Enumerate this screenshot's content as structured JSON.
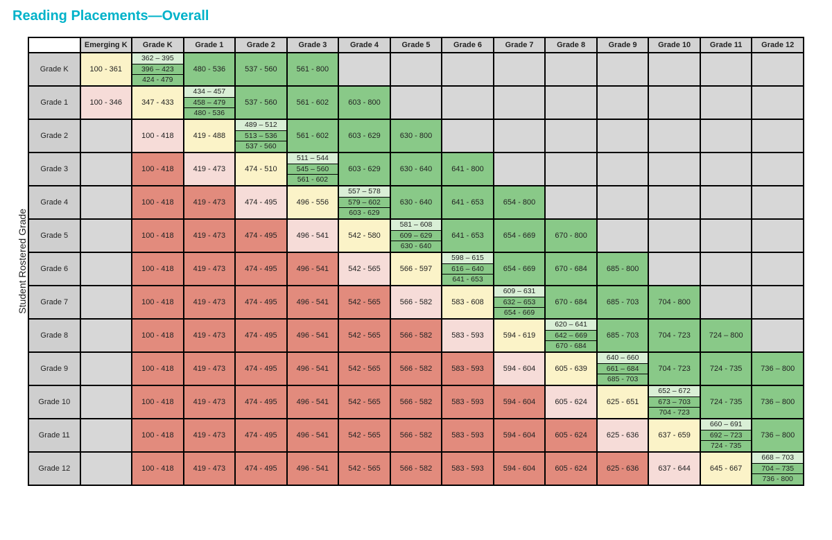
{
  "title": "Reading Placements—Overall",
  "title_color": "#00b2c9",
  "y_axis_label": "Student Rostered Grade",
  "colors": {
    "header_bg": "#d3d3d3",
    "rowhead_bg": "#cfcfcf",
    "empty_bg": "#d7d7d7",
    "red": "#e28b7d",
    "pink": "#f6dcd8",
    "yellow": "#fbf3c8",
    "green_light": "#d9efd6",
    "green": "#89c988",
    "border": "#000000",
    "text": "#222222"
  },
  "columns": [
    "Emerging K",
    "Grade K",
    "Grade 1",
    "Grade 2",
    "Grade 3",
    "Grade 4",
    "Grade 5",
    "Grade 6",
    "Grade 7",
    "Grade 8",
    "Grade 9",
    "Grade 10",
    "Grade 11",
    "Grade 12"
  ],
  "rows": [
    {
      "label": "Grade K",
      "cells": [
        {
          "text": "100 - 361",
          "bg": "yellow"
        },
        {
          "bands": [
            {
              "text": "362 – 395",
              "bg": "green_light"
            },
            {
              "text": "396 – 423",
              "bg": "green"
            },
            {
              "text": "424 - 479",
              "bg": "green"
            }
          ]
        },
        {
          "text": "480 - 536",
          "bg": "green"
        },
        {
          "text": "537 - 560",
          "bg": "green"
        },
        {
          "text": "561 - 800",
          "bg": "green"
        },
        {
          "bg": "empty_bg"
        },
        {
          "bg": "empty_bg"
        },
        {
          "bg": "empty_bg"
        },
        {
          "bg": "empty_bg"
        },
        {
          "bg": "empty_bg"
        },
        {
          "bg": "empty_bg"
        },
        {
          "bg": "empty_bg"
        },
        {
          "bg": "empty_bg"
        },
        {
          "bg": "empty_bg"
        }
      ]
    },
    {
      "label": "Grade 1",
      "cells": [
        {
          "text": "100 - 346",
          "bg": "pink"
        },
        {
          "text": "347 - 433",
          "bg": "yellow"
        },
        {
          "bands": [
            {
              "text": "434 – 457",
              "bg": "green_light"
            },
            {
              "text": "458 – 479",
              "bg": "green"
            },
            {
              "text": "480 - 536",
              "bg": "green"
            }
          ]
        },
        {
          "text": "537 - 560",
          "bg": "green"
        },
        {
          "text": "561 - 602",
          "bg": "green"
        },
        {
          "text": "603 - 800",
          "bg": "green"
        },
        {
          "bg": "empty_bg"
        },
        {
          "bg": "empty_bg"
        },
        {
          "bg": "empty_bg"
        },
        {
          "bg": "empty_bg"
        },
        {
          "bg": "empty_bg"
        },
        {
          "bg": "empty_bg"
        },
        {
          "bg": "empty_bg"
        },
        {
          "bg": "empty_bg"
        }
      ]
    },
    {
      "label": "Grade 2",
      "cells": [
        {
          "bg": "empty_bg"
        },
        {
          "text": "100 - 418",
          "bg": "pink"
        },
        {
          "text": "419 - 488",
          "bg": "yellow"
        },
        {
          "bands": [
            {
              "text": "489 – 512",
              "bg": "green_light"
            },
            {
              "text": "513 – 536",
              "bg": "green"
            },
            {
              "text": "537 - 560",
              "bg": "green"
            }
          ]
        },
        {
          "text": "561 - 602",
          "bg": "green"
        },
        {
          "text": "603 - 629",
          "bg": "green"
        },
        {
          "text": "630 - 800",
          "bg": "green"
        },
        {
          "bg": "empty_bg"
        },
        {
          "bg": "empty_bg"
        },
        {
          "bg": "empty_bg"
        },
        {
          "bg": "empty_bg"
        },
        {
          "bg": "empty_bg"
        },
        {
          "bg": "empty_bg"
        },
        {
          "bg": "empty_bg"
        }
      ]
    },
    {
      "label": "Grade 3",
      "cells": [
        {
          "bg": "empty_bg"
        },
        {
          "text": "100 - 418",
          "bg": "red"
        },
        {
          "text": "419 - 473",
          "bg": "pink"
        },
        {
          "text": "474 - 510",
          "bg": "yellow"
        },
        {
          "bands": [
            {
              "text": "511 – 544",
              "bg": "green_light"
            },
            {
              "text": "545 – 560",
              "bg": "green"
            },
            {
              "text": "561 - 602",
              "bg": "green"
            }
          ]
        },
        {
          "text": "603 - 629",
          "bg": "green"
        },
        {
          "text": "630 - 640",
          "bg": "green"
        },
        {
          "text": "641 - 800",
          "bg": "green"
        },
        {
          "bg": "empty_bg"
        },
        {
          "bg": "empty_bg"
        },
        {
          "bg": "empty_bg"
        },
        {
          "bg": "empty_bg"
        },
        {
          "bg": "empty_bg"
        },
        {
          "bg": "empty_bg"
        }
      ]
    },
    {
      "label": "Grade 4",
      "cells": [
        {
          "bg": "empty_bg"
        },
        {
          "text": "100 - 418",
          "bg": "red"
        },
        {
          "text": "419 - 473",
          "bg": "red"
        },
        {
          "text": "474 - 495",
          "bg": "pink"
        },
        {
          "text": "496 - 556",
          "bg": "yellow"
        },
        {
          "bands": [
            {
              "text": "557 – 578",
              "bg": "green_light"
            },
            {
              "text": "579 – 602",
              "bg": "green"
            },
            {
              "text": "603 - 629",
              "bg": "green"
            }
          ]
        },
        {
          "text": "630 - 640",
          "bg": "green"
        },
        {
          "text": "641 - 653",
          "bg": "green"
        },
        {
          "text": "654 - 800",
          "bg": "green"
        },
        {
          "bg": "empty_bg"
        },
        {
          "bg": "empty_bg"
        },
        {
          "bg": "empty_bg"
        },
        {
          "bg": "empty_bg"
        },
        {
          "bg": "empty_bg"
        }
      ]
    },
    {
      "label": "Grade 5",
      "cells": [
        {
          "bg": "empty_bg"
        },
        {
          "text": "100 - 418",
          "bg": "red"
        },
        {
          "text": "419 - 473",
          "bg": "red"
        },
        {
          "text": "474 - 495",
          "bg": "red"
        },
        {
          "text": "496 - 541",
          "bg": "pink"
        },
        {
          "text": "542 - 580",
          "bg": "yellow"
        },
        {
          "bands": [
            {
              "text": "581 – 608",
              "bg": "green_light"
            },
            {
              "text": "609 – 629",
              "bg": "green"
            },
            {
              "text": "630 - 640",
              "bg": "green"
            }
          ]
        },
        {
          "text": "641 - 653",
          "bg": "green"
        },
        {
          "text": "654 - 669",
          "bg": "green"
        },
        {
          "text": "670 - 800",
          "bg": "green"
        },
        {
          "bg": "empty_bg"
        },
        {
          "bg": "empty_bg"
        },
        {
          "bg": "empty_bg"
        },
        {
          "bg": "empty_bg"
        }
      ]
    },
    {
      "label": "Grade 6",
      "cells": [
        {
          "bg": "empty_bg"
        },
        {
          "text": "100 - 418",
          "bg": "red"
        },
        {
          "text": "419 - 473",
          "bg": "red"
        },
        {
          "text": "474 - 495",
          "bg": "red"
        },
        {
          "text": "496 - 541",
          "bg": "red"
        },
        {
          "text": "542 - 565",
          "bg": "pink"
        },
        {
          "text": "566 - 597",
          "bg": "yellow"
        },
        {
          "bands": [
            {
              "text": "598 – 615",
              "bg": "green_light"
            },
            {
              "text": "616 – 640",
              "bg": "green"
            },
            {
              "text": "641 - 653",
              "bg": "green"
            }
          ]
        },
        {
          "text": "654 - 669",
          "bg": "green"
        },
        {
          "text": "670 - 684",
          "bg": "green"
        },
        {
          "text": "685 - 800",
          "bg": "green"
        },
        {
          "bg": "empty_bg"
        },
        {
          "bg": "empty_bg"
        },
        {
          "bg": "empty_bg"
        }
      ]
    },
    {
      "label": "Grade 7",
      "cells": [
        {
          "bg": "empty_bg"
        },
        {
          "text": "100 - 418",
          "bg": "red"
        },
        {
          "text": "419 - 473",
          "bg": "red"
        },
        {
          "text": "474 - 495",
          "bg": "red"
        },
        {
          "text": "496 - 541",
          "bg": "red"
        },
        {
          "text": "542 - 565",
          "bg": "red"
        },
        {
          "text": "566 - 582",
          "bg": "pink"
        },
        {
          "text": "583 - 608",
          "bg": "yellow"
        },
        {
          "bands": [
            {
              "text": "609 – 631",
              "bg": "green_light"
            },
            {
              "text": "632 – 653",
              "bg": "green"
            },
            {
              "text": "654 - 669",
              "bg": "green"
            }
          ]
        },
        {
          "text": "670 - 684",
          "bg": "green"
        },
        {
          "text": "685 - 703",
          "bg": "green"
        },
        {
          "text": "704 - 800",
          "bg": "green"
        },
        {
          "bg": "empty_bg"
        },
        {
          "bg": "empty_bg"
        }
      ]
    },
    {
      "label": "Grade 8",
      "cells": [
        {
          "bg": "empty_bg"
        },
        {
          "text": "100 - 418",
          "bg": "red"
        },
        {
          "text": "419 - 473",
          "bg": "red"
        },
        {
          "text": "474 - 495",
          "bg": "red"
        },
        {
          "text": "496 - 541",
          "bg": "red"
        },
        {
          "text": "542 - 565",
          "bg": "red"
        },
        {
          "text": "566 - 582",
          "bg": "red"
        },
        {
          "text": "583 - 593",
          "bg": "pink"
        },
        {
          "text": "594 - 619",
          "bg": "yellow"
        },
        {
          "bands": [
            {
              "text": "620 – 641",
              "bg": "green_light"
            },
            {
              "text": "642 – 669",
              "bg": "green"
            },
            {
              "text": "670 - 684",
              "bg": "green"
            }
          ]
        },
        {
          "text": "685 - 703",
          "bg": "green"
        },
        {
          "text": "704 - 723",
          "bg": "green"
        },
        {
          "text": "724 – 800",
          "bg": "green"
        },
        {
          "bg": "empty_bg"
        }
      ]
    },
    {
      "label": "Grade 9",
      "cells": [
        {
          "bg": "empty_bg"
        },
        {
          "text": "100 - 418",
          "bg": "red"
        },
        {
          "text": "419 - 473",
          "bg": "red"
        },
        {
          "text": "474 - 495",
          "bg": "red"
        },
        {
          "text": "496 - 541",
          "bg": "red"
        },
        {
          "text": "542 - 565",
          "bg": "red"
        },
        {
          "text": "566 - 582",
          "bg": "red"
        },
        {
          "text": "583 - 593",
          "bg": "red"
        },
        {
          "text": "594 - 604",
          "bg": "pink"
        },
        {
          "text": "605 - 639",
          "bg": "yellow"
        },
        {
          "bands": [
            {
              "text": "640 – 660",
              "bg": "green_light"
            },
            {
              "text": "661 – 684",
              "bg": "green"
            },
            {
              "text": "685 - 703",
              "bg": "green"
            }
          ]
        },
        {
          "text": "704 - 723",
          "bg": "green"
        },
        {
          "text": "724 - 735",
          "bg": "green"
        },
        {
          "text": "736 – 800",
          "bg": "green"
        }
      ]
    },
    {
      "label": "Grade 10",
      "cells": [
        {
          "bg": "empty_bg"
        },
        {
          "text": "100 - 418",
          "bg": "red"
        },
        {
          "text": "419 - 473",
          "bg": "red"
        },
        {
          "text": "474 - 495",
          "bg": "red"
        },
        {
          "text": "496 - 541",
          "bg": "red"
        },
        {
          "text": "542 - 565",
          "bg": "red"
        },
        {
          "text": "566 - 582",
          "bg": "red"
        },
        {
          "text": "583 - 593",
          "bg": "red"
        },
        {
          "text": "594 - 604",
          "bg": "red"
        },
        {
          "text": "605 - 624",
          "bg": "pink"
        },
        {
          "text": "625 - 651",
          "bg": "yellow"
        },
        {
          "bands": [
            {
              "text": "652 – 672",
              "bg": "green_light"
            },
            {
              "text": "673 – 703",
              "bg": "green"
            },
            {
              "text": "704 - 723",
              "bg": "green"
            }
          ]
        },
        {
          "text": "724 - 735",
          "bg": "green"
        },
        {
          "text": "736 – 800",
          "bg": "green"
        }
      ]
    },
    {
      "label": "Grade 11",
      "cells": [
        {
          "bg": "empty_bg"
        },
        {
          "text": "100 - 418",
          "bg": "red"
        },
        {
          "text": "419 - 473",
          "bg": "red"
        },
        {
          "text": "474 - 495",
          "bg": "red"
        },
        {
          "text": "496 - 541",
          "bg": "red"
        },
        {
          "text": "542 - 565",
          "bg": "red"
        },
        {
          "text": "566 - 582",
          "bg": "red"
        },
        {
          "text": "583 - 593",
          "bg": "red"
        },
        {
          "text": "594 - 604",
          "bg": "red"
        },
        {
          "text": "605 - 624",
          "bg": "red"
        },
        {
          "text": "625 - 636",
          "bg": "pink"
        },
        {
          "text": "637 - 659",
          "bg": "yellow"
        },
        {
          "bands": [
            {
              "text": "660 – 691",
              "bg": "green_light"
            },
            {
              "text": "692 – 723",
              "bg": "green"
            },
            {
              "text": "724 - 735",
              "bg": "green"
            }
          ]
        },
        {
          "text": "736 – 800",
          "bg": "green"
        }
      ]
    },
    {
      "label": "Grade 12",
      "cells": [
        {
          "bg": "empty_bg"
        },
        {
          "text": "100 - 418",
          "bg": "red"
        },
        {
          "text": "419 - 473",
          "bg": "red"
        },
        {
          "text": "474 - 495",
          "bg": "red"
        },
        {
          "text": "496 - 541",
          "bg": "red"
        },
        {
          "text": "542 - 565",
          "bg": "red"
        },
        {
          "text": "566 - 582",
          "bg": "red"
        },
        {
          "text": "583 - 593",
          "bg": "red"
        },
        {
          "text": "594 - 604",
          "bg": "red"
        },
        {
          "text": "605 - 624",
          "bg": "red"
        },
        {
          "text": "625 - 636",
          "bg": "red"
        },
        {
          "text": "637 - 644",
          "bg": "pink"
        },
        {
          "text": "645 - 667",
          "bg": "yellow"
        },
        {
          "bands": [
            {
              "text": "668 – 703",
              "bg": "green_light"
            },
            {
              "text": "704 – 735",
              "bg": "green"
            },
            {
              "text": "736 - 800",
              "bg": "green"
            }
          ]
        }
      ]
    }
  ]
}
